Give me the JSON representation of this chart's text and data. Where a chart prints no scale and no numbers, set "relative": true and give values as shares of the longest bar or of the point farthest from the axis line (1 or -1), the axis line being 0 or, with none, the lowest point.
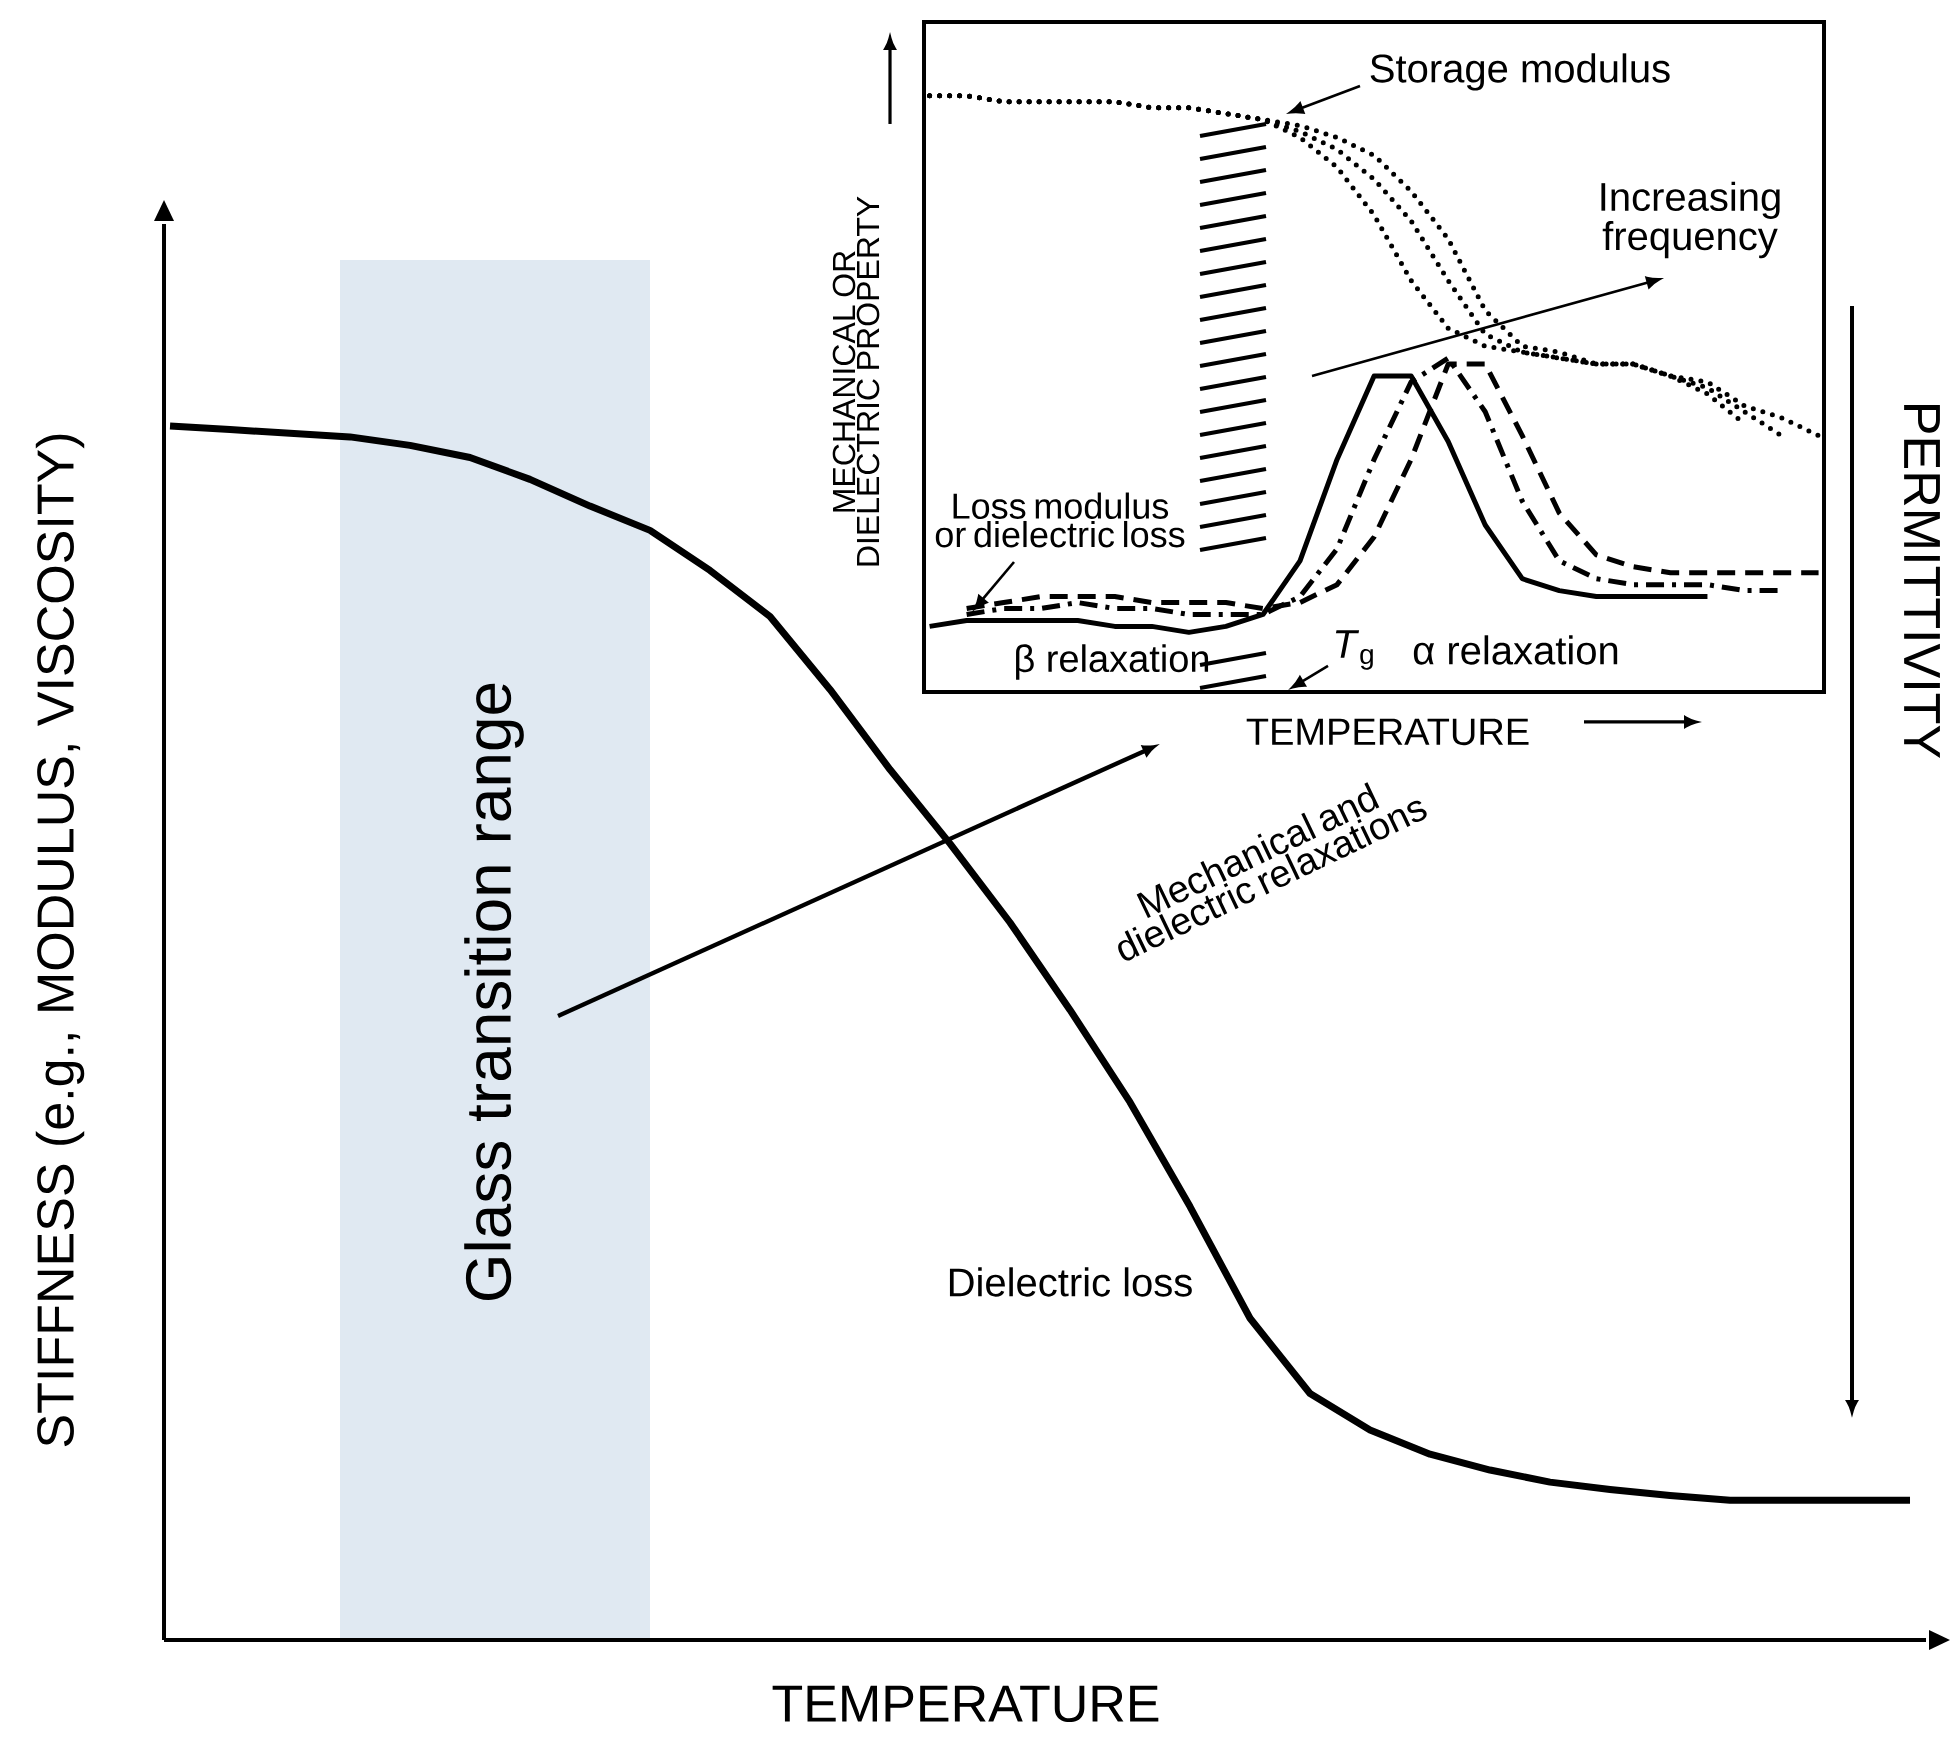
{
  "chart_data": [
    {
      "type": "line",
      "xlabel": "TEMPERATURE",
      "ylabel": "STIFFNESS (e.g., MODULUS, VISCOSITY)",
      "y2label": "PERMITTIVITY",
      "relative": true,
      "categories": [
        null,
        null,
        null,
        null,
        null,
        null,
        null,
        null,
        null,
        null,
        null,
        null,
        null,
        null,
        null,
        null,
        null,
        null,
        null,
        null,
        null,
        null,
        null,
        null,
        null,
        null,
        null,
        null,
        null,
        null
      ],
      "series": [
        {
          "color": "#000000",
          "line_style": "solid",
          "values": [
            1.0,
            0.997,
            0.994,
            0.991,
            0.984,
            0.974,
            0.956,
            0.934,
            0.914,
            0.881,
            0.843,
            0.783,
            0.717,
            0.656,
            0.591,
            0.519,
            0.443,
            0.357,
            0.265,
            0.203,
            0.173,
            0.153,
            0.14,
            0.13,
            0.124,
            0.119,
            0.115,
            0.115,
            0.115,
            0.115
          ]
        }
      ],
      "annotations": [
        "Glass transition range",
        "Mechanical and dielectric relaxations",
        "Dielectric loss"
      ]
    },
    {
      "type": "line",
      "xlabel": "TEMPERATURE",
      "ylabel": "MECHANICAL OR DIELECTRIC PROPERTY",
      "relative": true,
      "categories": [
        null,
        null,
        null,
        null,
        null,
        null,
        null,
        null,
        null,
        null,
        null,
        null,
        null,
        null,
        null,
        null,
        null,
        null,
        null,
        null,
        null,
        null,
        null,
        null,
        null
      ],
      "series": [
        {
          "color": "#000000",
          "line_style": "dotted",
          "values": [
            1.0,
            1.0,
            0.99,
            0.99,
            0.99,
            0.99,
            0.98,
            0.98,
            0.97,
            0.96,
            0.93,
            0.88,
            0.8,
            0.69,
            0.61,
            0.58,
            0.57,
            0.56,
            0.55,
            0.55,
            0.53,
            0.5,
            0.45,
            null,
            null
          ]
        },
        {
          "color": "#000000",
          "line_style": "dotted",
          "values": [
            1.0,
            1.0,
            0.99,
            0.99,
            0.99,
            0.99,
            0.98,
            0.98,
            0.97,
            0.96,
            0.94,
            0.91,
            0.86,
            0.79,
            0.69,
            0.6,
            0.57,
            0.56,
            0.55,
            0.55,
            0.53,
            0.51,
            0.47,
            0.43,
            null
          ]
        },
        {
          "color": "#000000",
          "line_style": "dotted",
          "values": [
            1.0,
            1.0,
            0.99,
            0.99,
            0.99,
            0.99,
            0.98,
            0.98,
            0.97,
            0.96,
            0.95,
            0.93,
            0.9,
            0.84,
            0.76,
            0.64,
            0.58,
            0.57,
            0.55,
            0.55,
            0.53,
            0.52,
            0.48,
            0.46,
            0.43
          ]
        },
        {
          "color": "#000000",
          "line_style": "solid",
          "values": [
            0.11,
            0.12,
            0.12,
            0.12,
            0.12,
            0.11,
            0.11,
            0.1,
            0.11,
            0.13,
            0.22,
            0.39,
            0.53,
            0.53,
            0.42,
            0.28,
            0.19,
            0.17,
            0.16,
            0.16,
            0.16,
            0.16,
            null,
            null,
            null
          ]
        },
        {
          "color": "#000000",
          "line_style": "dashdot",
          "values": [
            null,
            0.13,
            0.14,
            0.14,
            0.15,
            0.14,
            0.14,
            0.13,
            0.13,
            0.13,
            0.16,
            0.24,
            0.39,
            0.52,
            0.56,
            0.47,
            0.32,
            0.22,
            0.19,
            0.18,
            0.18,
            0.18,
            0.17,
            0.17,
            null
          ]
        },
        {
          "color": "#000000",
          "line_style": "dashed",
          "values": [
            null,
            0.14,
            0.15,
            0.16,
            0.16,
            0.16,
            0.15,
            0.15,
            0.15,
            0.14,
            0.15,
            0.18,
            0.26,
            0.39,
            0.55,
            0.55,
            0.43,
            0.3,
            0.23,
            0.21,
            0.2,
            0.2,
            0.2,
            0.2,
            0.2
          ]
        }
      ],
      "annotations": [
        "Storage modulus",
        "Increasing frequency",
        "Loss modulus or dielectric loss",
        "β relaxation",
        "*T*$_{g}$",
        "α relaxation"
      ]
    }
  ]
}
